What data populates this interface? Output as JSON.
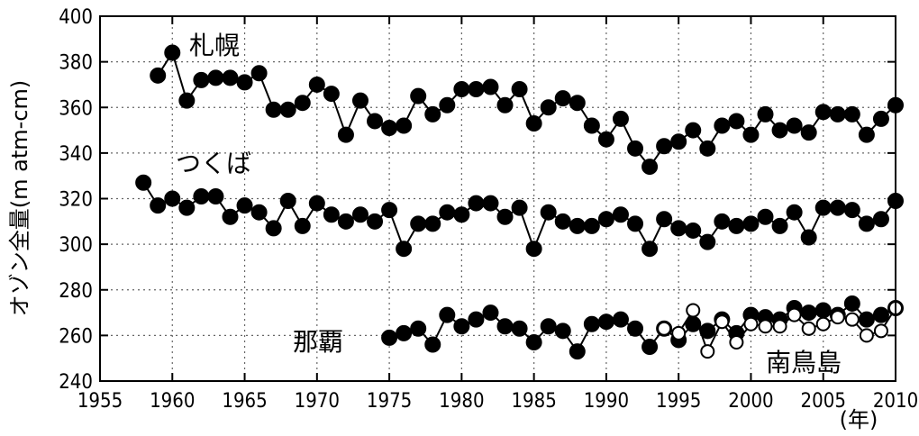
{
  "chart_data": {
    "type": "line",
    "ylabel": "オゾン全量(m atm-cm)",
    "xunit": "(年)",
    "xlim": [
      1955,
      2010
    ],
    "ylim": [
      240,
      400
    ],
    "xticks": [
      "1955",
      "1960",
      "1965",
      "1970",
      "1975",
      "1980",
      "1985",
      "1990",
      "1995",
      "2000",
      "2005",
      "2010"
    ],
    "yticks": [
      "240",
      "260",
      "280",
      "300",
      "320",
      "340",
      "360",
      "380",
      "400"
    ],
    "grid": "dotted",
    "series": [
      {
        "name": "札幌",
        "marker": "filled-circle",
        "x": [
          1959,
          1960,
          1961,
          1962,
          1963,
          1964,
          1965,
          1966,
          1967,
          1968,
          1969,
          1970,
          1971,
          1972,
          1973,
          1974,
          1975,
          1976,
          1977,
          1978,
          1979,
          1980,
          1981,
          1982,
          1983,
          1984,
          1985,
          1986,
          1987,
          1988,
          1989,
          1990,
          1991,
          1992,
          1993,
          1994,
          1995,
          1996,
          1997,
          1998,
          1999,
          2000,
          2001,
          2002,
          2003,
          2004,
          2005,
          2006,
          2007,
          2008,
          2009,
          2010
        ],
        "values": [
          374,
          384,
          363,
          372,
          373,
          373,
          371,
          375,
          359,
          359,
          362,
          370,
          366,
          348,
          363,
          354,
          351,
          352,
          365,
          357,
          361,
          368,
          368,
          369,
          361,
          368,
          353,
          360,
          364,
          362,
          352,
          346,
          355,
          342,
          334,
          343,
          345,
          350,
          342,
          352,
          354,
          348,
          357,
          350,
          352,
          349,
          358,
          357,
          357,
          348,
          355,
          361
        ]
      },
      {
        "name": "つくば",
        "marker": "filled-circle",
        "x": [
          1958,
          1959,
          1960,
          1961,
          1962,
          1963,
          1964,
          1965,
          1966,
          1967,
          1968,
          1969,
          1970,
          1971,
          1972,
          1973,
          1974,
          1975,
          1976,
          1977,
          1978,
          1979,
          1980,
          1981,
          1982,
          1983,
          1984,
          1985,
          1986,
          1987,
          1988,
          1989,
          1990,
          1991,
          1992,
          1993,
          1994,
          1995,
          1996,
          1997,
          1998,
          1999,
          2000,
          2001,
          2002,
          2003,
          2004,
          2005,
          2006,
          2007,
          2008,
          2009,
          2010
        ],
        "values": [
          327,
          317,
          320,
          316,
          321,
          321,
          312,
          317,
          314,
          307,
          319,
          308,
          318,
          313,
          310,
          313,
          310,
          315,
          298,
          309,
          309,
          314,
          313,
          318,
          318,
          312,
          316,
          298,
          314,
          310,
          308,
          308,
          311,
          313,
          309,
          298,
          311,
          307,
          306,
          301,
          310,
          308,
          309,
          312,
          308,
          314,
          303,
          316,
          316,
          315,
          309,
          311,
          319
        ]
      },
      {
        "name": "那覇",
        "marker": "filled-circle",
        "x": [
          1975,
          1976,
          1977,
          1978,
          1979,
          1980,
          1981,
          1982,
          1983,
          1984,
          1985,
          1986,
          1987,
          1988,
          1989,
          1990,
          1991,
          1992,
          1993,
          1994,
          1995,
          1996,
          1997,
          1998,
          1999,
          2000,
          2001,
          2002,
          2003,
          2004,
          2005,
          2006,
          2007,
          2008,
          2009,
          2010
        ],
        "values": [
          259,
          261,
          263,
          256,
          269,
          264,
          267,
          270,
          264,
          263,
          257,
          264,
          262,
          253,
          265,
          266,
          267,
          263,
          255,
          263,
          258,
          265,
          262,
          267,
          261,
          269,
          268,
          267,
          272,
          270,
          271,
          269,
          274,
          267,
          269,
          272
        ]
      },
      {
        "name": "南鳥島",
        "marker": "open-circle",
        "x": [
          1994,
          1995,
          1996,
          1997,
          1998,
          1999,
          2000,
          2001,
          2002,
          2003,
          2004,
          2005,
          2006,
          2007,
          2008,
          2009,
          2010
        ],
        "values": [
          263,
          261,
          271,
          253,
          266,
          257,
          265,
          264,
          264,
          269,
          263,
          265,
          268,
          267,
          260,
          262,
          272
        ]
      }
    ]
  }
}
